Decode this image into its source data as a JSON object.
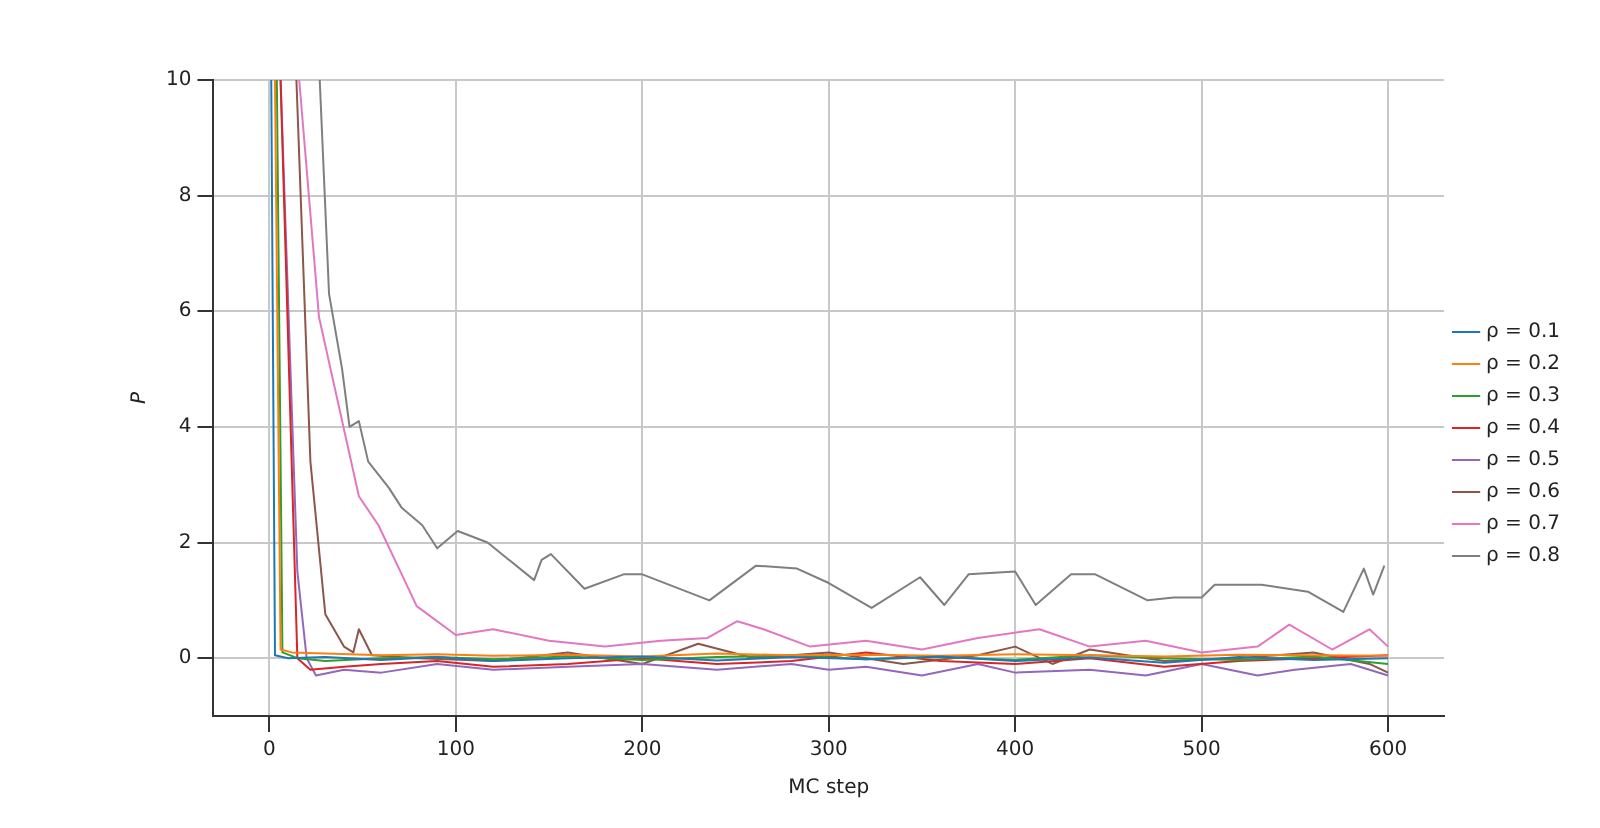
{
  "chart_data": {
    "type": "line",
    "xlabel": "MC step",
    "ylabel": "P",
    "xlim": [
      -30,
      630
    ],
    "ylim": [
      -1,
      10
    ],
    "xticks": [
      0,
      100,
      200,
      300,
      400,
      500,
      600
    ],
    "yticks": [
      0,
      2,
      4,
      6,
      8,
      10
    ],
    "grid": true,
    "legend": "right",
    "marker": "none",
    "line_style": "solid",
    "series": [
      {
        "name": "ρ = 0.1",
        "color": "#1f77b4",
        "x": [
          1,
          3,
          10,
          30,
          60,
          90,
          120,
          160,
          200,
          240,
          280,
          320,
          360,
          400,
          440,
          480,
          520,
          560,
          600
        ],
        "values": [
          10,
          0.05,
          0,
          0.02,
          -0.03,
          0.02,
          -0.05,
          0,
          0.03,
          -0.04,
          0.02,
          -0.02,
          0.03,
          -0.05,
          0.01,
          -0.08,
          0.02,
          -0.03,
          0
        ]
      },
      {
        "name": "ρ = 0.2",
        "color": "#ff7f0e",
        "x": [
          3,
          6,
          12,
          30,
          60,
          90,
          120,
          160,
          200,
          240,
          280,
          320,
          360,
          400,
          440,
          480,
          520,
          560,
          600
        ],
        "values": [
          10,
          0.15,
          0.1,
          0.08,
          0.05,
          0.07,
          0.04,
          0.06,
          0.03,
          0.08,
          0.05,
          0.06,
          0.04,
          0.07,
          0.05,
          0.03,
          0.06,
          0.05,
          0.04
        ]
      },
      {
        "name": "ρ = 0.3",
        "color": "#2ca02c",
        "x": [
          4,
          7,
          15,
          30,
          60,
          90,
          120,
          160,
          200,
          240,
          280,
          320,
          360,
          400,
          440,
          480,
          520,
          560,
          600
        ],
        "values": [
          10,
          0.1,
          0,
          -0.05,
          0,
          0.02,
          -0.02,
          0.03,
          -0.03,
          0.02,
          0.05,
          -0.02,
          0.02,
          -0.03,
          0.05,
          0,
          -0.03,
          0.03,
          -0.1
        ]
      },
      {
        "name": "ρ = 0.4",
        "color": "#d62728",
        "x": [
          6,
          15,
          22,
          40,
          60,
          90,
          120,
          160,
          200,
          240,
          280,
          320,
          360,
          400,
          440,
          480,
          520,
          560,
          600
        ],
        "values": [
          10,
          0,
          -0.2,
          -0.15,
          -0.1,
          -0.05,
          -0.15,
          -0.1,
          0,
          -0.1,
          -0.05,
          0.1,
          -0.05,
          -0.1,
          0,
          -0.15,
          -0.05,
          0,
          0.05
        ]
      },
      {
        "name": "ρ = 0.5",
        "color": "#9467bd",
        "x": [
          6,
          15,
          20,
          25,
          40,
          60,
          90,
          120,
          160,
          200,
          240,
          280,
          300,
          320,
          350,
          380,
          400,
          440,
          470,
          500,
          530,
          550,
          580,
          600
        ],
        "values": [
          10,
          1.5,
          0,
          -0.3,
          -0.2,
          -0.25,
          -0.1,
          -0.2,
          -0.15,
          -0.1,
          -0.2,
          -0.1,
          -0.2,
          -0.15,
          -0.3,
          -0.1,
          -0.25,
          -0.2,
          -0.3,
          -0.1,
          -0.3,
          -0.2,
          -0.1,
          -0.3
        ]
      },
      {
        "name": "ρ = 0.6",
        "color": "#8c564b",
        "x": [
          14.5,
          22,
          30,
          40,
          45,
          48,
          55,
          80,
          120,
          160,
          200,
          230,
          260,
          300,
          340,
          380,
          400,
          420,
          440,
          480,
          520,
          560,
          590,
          600
        ],
        "values": [
          10,
          3.4,
          0.76,
          0.2,
          0.1,
          0.5,
          0.05,
          0,
          -0.05,
          0.1,
          -0.1,
          0.25,
          0,
          0.1,
          -0.1,
          0.05,
          0.2,
          -0.1,
          0.15,
          -0.05,
          0,
          0.1,
          -0.1,
          -0.25
        ]
      },
      {
        "name": "ρ = 0.7",
        "color": "#e377c2",
        "x": [
          16,
          26.6,
          48,
          58.5,
          71,
          79,
          100,
          120,
          150,
          180,
          210,
          235,
          251,
          265,
          290,
          320,
          350,
          380,
          413,
          440,
          470,
          500,
          530,
          547,
          570,
          590,
          600
        ],
        "values": [
          10,
          5.9,
          2.8,
          2.3,
          1.45,
          0.9,
          0.4,
          0.5,
          0.3,
          0.2,
          0.3,
          0.35,
          0.64,
          0.5,
          0.2,
          0.3,
          0.15,
          0.35,
          0.5,
          0.2,
          0.3,
          0.1,
          0.2,
          0.58,
          0.15,
          0.5,
          0.2
        ]
      },
      {
        "name": "ρ = 0.8",
        "color": "#7f7f7f",
        "x": [
          27,
          32,
          39,
          43,
          48,
          53,
          64,
          71,
          82,
          90,
          101,
          117,
          142,
          146,
          151,
          169,
          190,
          200,
          236,
          261,
          283,
          300,
          323,
          349,
          362,
          375,
          400,
          411,
          430,
          443,
          471,
          485,
          500,
          507,
          532,
          557,
          576,
          587,
          592,
          598
        ],
        "values": [
          10,
          6.3,
          5.0,
          4.0,
          4.1,
          3.4,
          2.95,
          2.6,
          2.3,
          1.9,
          2.2,
          2.0,
          1.35,
          1.7,
          1.8,
          1.2,
          1.45,
          1.45,
          1.0,
          1.6,
          1.55,
          1.3,
          0.87,
          1.4,
          0.92,
          1.45,
          1.5,
          0.92,
          1.45,
          1.45,
          1.0,
          1.05,
          1.05,
          1.27,
          1.27,
          1.15,
          0.8,
          1.55,
          1.1,
          1.6
        ]
      }
    ]
  }
}
